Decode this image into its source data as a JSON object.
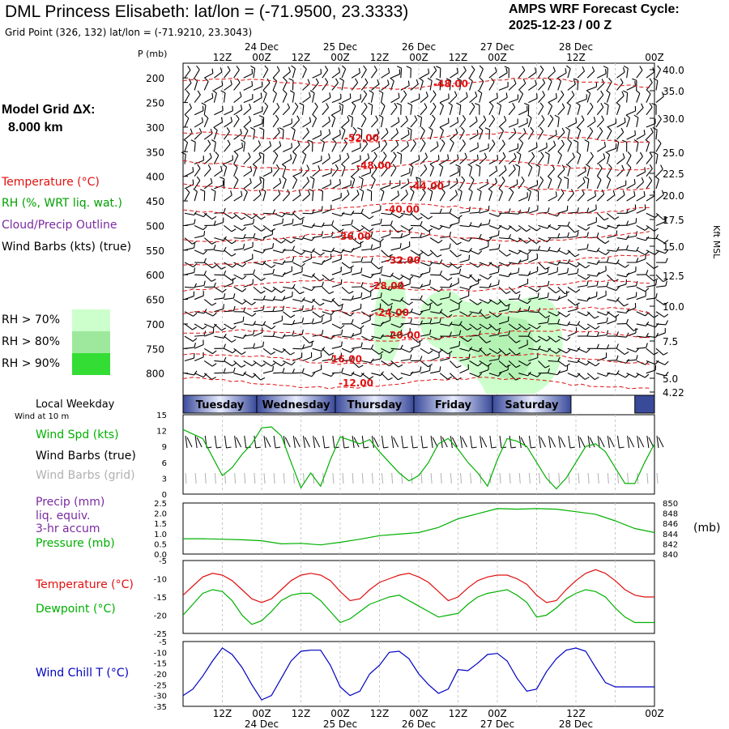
{
  "header": {
    "title": "DML Princess Elisabeth:  lat/lon = (-71.9500, 23.3333)",
    "grid_point": "Grid Point (326, 132) lat/lon = (-71.9210, 23.3043)",
    "cycle_line1": "AMPS WRF Forecast Cycle:",
    "cycle_line2": "2025-12-23 / 00  Z",
    "model_grid_line1": "Model Grid ΔX:",
    "model_grid_line2": "8.000 km"
  },
  "colors": {
    "temperature": "#e01010",
    "rh": "#00a000",
    "cloud": "#7a2aa0",
    "wind": "#000000",
    "wind_grid": "#b0b0b0",
    "pressure": "#00b000",
    "windchill": "#0000c0",
    "rh70": "#ccffcc",
    "rh80": "#9ee89e",
    "rh90": "#33dd33"
  },
  "legend": {
    "temperature": "Temperature (°C)",
    "rh": "RH (%, WRT liq. wat.)",
    "cloud": "Cloud/Precip Outline",
    "wind": "Wind Barbs (kts) (true)",
    "rh70": "RH > 70%",
    "rh80": "RH > 80%",
    "rh90": "RH > 90%"
  },
  "time_axis": {
    "hour_labels": [
      "12Z",
      "00Z",
      "12Z",
      "00Z",
      "12Z",
      "00Z",
      "12Z",
      "00Z",
      "12Z",
      "00Z"
    ],
    "date_labels": [
      "24 Dec",
      "25 Dec",
      "26 Dec",
      "27 Dec",
      "28 Dec"
    ],
    "local_weekday_label": "Local Weekday",
    "weekdays": [
      "Tuesday",
      "Wednesday",
      "Thursday",
      "Friday",
      "Saturday"
    ]
  },
  "chart_data": [
    {
      "type": "contour",
      "id": "upper-air",
      "y_axis_label": "P (mb)",
      "pressure_ticks": [
        200,
        250,
        300,
        350,
        400,
        450,
        500,
        550,
        600,
        650,
        700,
        750,
        800
      ],
      "right_axis_label": "Kft MSL",
      "height_ticks": [
        "40.0",
        "35.0",
        "30.0",
        "25.0",
        "22.5",
        "20.0",
        "17.5",
        "15.0",
        "12.5",
        "10.0",
        "7.5",
        "5.0",
        "4.22"
      ],
      "temperature_contours": [
        {
          "label": "-48.00",
          "p": 212
        },
        {
          "label": "-52.00",
          "p": 322
        },
        {
          "label": "-48.00",
          "p": 378
        },
        {
          "label": "-44.00",
          "p": 420
        },
        {
          "label": "-40.00",
          "p": 467
        },
        {
          "label": "-36.00",
          "p": 522
        },
        {
          "label": "-32.00",
          "p": 571
        },
        {
          "label": "-28.00",
          "p": 623
        },
        {
          "label": "-24.00",
          "p": 677
        },
        {
          "label": "-20.00",
          "p": 723
        },
        {
          "label": "-16.00",
          "p": 772
        },
        {
          "label": "-12.00",
          "p": 820
        }
      ]
    },
    {
      "type": "line",
      "id": "wind-speed",
      "labels": {
        "line1": "Wind Spd (kts)",
        "line2": "Wind Barbs (true)",
        "line3": "Wind Barbs (grid)",
        "note": "Wind at 10 m"
      },
      "yticks": [
        0,
        3,
        6,
        9,
        12,
        15
      ],
      "ylim": [
        0,
        15
      ],
      "x_hours": [
        0,
        6,
        9,
        12,
        15,
        18,
        21,
        24,
        27,
        30,
        33,
        36,
        39,
        42,
        45,
        48,
        51,
        54,
        57,
        60,
        63,
        66,
        69,
        72,
        75,
        78,
        81,
        84,
        87,
        90,
        93,
        96,
        99,
        102,
        105,
        108,
        111,
        114,
        117,
        120,
        123,
        126,
        129,
        132,
        135,
        138,
        141,
        144
      ],
      "values": [
        12.2,
        10.5,
        7,
        3.5,
        5,
        7.5,
        9.5,
        12.5,
        12.7,
        11,
        6,
        1.2,
        4,
        1.5,
        6.5,
        10.8,
        10.2,
        9.5,
        10.3,
        8,
        6,
        4,
        2.5,
        3.5,
        6,
        9.5,
        10.5,
        8.5,
        6,
        4,
        1.5,
        6.5,
        10.5,
        10,
        9,
        6,
        3,
        1,
        3,
        6,
        9,
        9.5,
        8,
        5,
        2,
        2,
        6,
        9.5
      ]
    },
    {
      "type": "line",
      "id": "precip-pressure",
      "labels": {
        "line1": "Precip (mm)",
        "line2": "liq. equiv.",
        "line3": "3-hr accum",
        "line4": "Pressure (mb)",
        "right": "(mb)"
      },
      "precip_ticks": [
        "0.0",
        "0.5",
        "1.0",
        "1.5",
        "2.0",
        "2.5"
      ],
      "pressure_ticks": [
        840,
        842,
        844,
        846,
        848,
        850
      ],
      "x_hours": [
        0,
        6,
        12,
        18,
        24,
        30,
        36,
        42,
        48,
        54,
        60,
        66,
        72,
        78,
        84,
        90,
        96,
        102,
        108,
        114,
        120,
        126,
        132,
        138,
        144
      ],
      "pressure_mb": [
        843.0,
        843.0,
        842.9,
        842.8,
        842.6,
        842.0,
        842.1,
        841.8,
        842.3,
        842.9,
        843.6,
        843.9,
        844.2,
        845.2,
        846.9,
        847.9,
        848.9,
        848.8,
        848.9,
        848.8,
        848.3,
        847.8,
        846.5,
        845.0,
        844.2
      ],
      "precip_mm": []
    },
    {
      "type": "line",
      "id": "temp-dewpoint",
      "labels": {
        "temperature": "Temperature (°C)",
        "dewpoint": "Dewpoint (°C)"
      },
      "yticks": [
        -25,
        -20,
        -15,
        -10,
        -5
      ],
      "ylim": [
        -25,
        -5
      ],
      "x_hours": [
        0,
        3,
        6,
        9,
        12,
        15,
        18,
        21,
        24,
        27,
        30,
        33,
        36,
        39,
        42,
        45,
        48,
        51,
        54,
        57,
        60,
        63,
        66,
        69,
        72,
        75,
        78,
        81,
        84,
        87,
        90,
        93,
        96,
        99,
        102,
        105,
        108,
        111,
        114,
        117,
        120,
        123,
        126,
        129,
        132,
        135,
        138,
        141,
        144
      ],
      "temperature": [
        -14.5,
        -12,
        -9.5,
        -8.5,
        -9,
        -10.5,
        -13,
        -15.5,
        -16.5,
        -15.5,
        -13,
        -10.5,
        -9,
        -8.5,
        -9,
        -10.5,
        -13.5,
        -16,
        -15.5,
        -13,
        -11,
        -10,
        -9,
        -8.5,
        -9.5,
        -11,
        -13.5,
        -16,
        -15,
        -12.5,
        -10.5,
        -9.5,
        -9,
        -9,
        -10,
        -11.5,
        -14.5,
        -16.5,
        -16,
        -13,
        -10.5,
        -8.5,
        -7.5,
        -8.5,
        -10.5,
        -13,
        -14.5,
        -15,
        -15
      ],
      "dewpoint": [
        -20,
        -17,
        -14,
        -13,
        -13.5,
        -16,
        -20,
        -22.5,
        -21.5,
        -19,
        -16,
        -14.5,
        -14,
        -14,
        -16,
        -19,
        -22,
        -21,
        -19,
        -17,
        -16,
        -15,
        -14.5,
        -16,
        -17.5,
        -19,
        -20.5,
        -20,
        -19.5,
        -17,
        -15,
        -14,
        -13.5,
        -13,
        -14.5,
        -16.5,
        -20.5,
        -20,
        -18,
        -15.5,
        -14,
        -13,
        -13.5,
        -15,
        -18,
        -20.5,
        -22,
        -22,
        -22
      ]
    },
    {
      "type": "line",
      "id": "wind-chill",
      "labels": {
        "windchill": "Wind Chill T (°C)"
      },
      "yticks": [
        -35,
        -30,
        -25,
        -20,
        -15,
        -10,
        -5
      ],
      "ylim": [
        -35,
        -5
      ],
      "x_hours": [
        0,
        3,
        6,
        9,
        12,
        15,
        18,
        21,
        24,
        27,
        30,
        33,
        36,
        39,
        42,
        45,
        48,
        51,
        54,
        57,
        60,
        63,
        66,
        69,
        72,
        75,
        78,
        81,
        84,
        87,
        90,
        93,
        96,
        99,
        102,
        105,
        108,
        111,
        114,
        117,
        120,
        123,
        126,
        129,
        132,
        135,
        138,
        141,
        144
      ],
      "windchill": [
        -30,
        -27,
        -21,
        -14,
        -8,
        -11,
        -17,
        -25,
        -32,
        -30,
        -22,
        -14,
        -9.5,
        -9,
        -9,
        -16,
        -26,
        -30,
        -28,
        -20,
        -16,
        -10,
        -9.5,
        -13,
        -20,
        -25,
        -29,
        -27,
        -18,
        -18.5,
        -15,
        -11,
        -10.5,
        -14,
        -22,
        -28,
        -27,
        -19,
        -13,
        -9,
        -8,
        -9.5,
        -17,
        -24,
        -26,
        -26,
        -26,
        -26,
        -26
      ]
    }
  ]
}
